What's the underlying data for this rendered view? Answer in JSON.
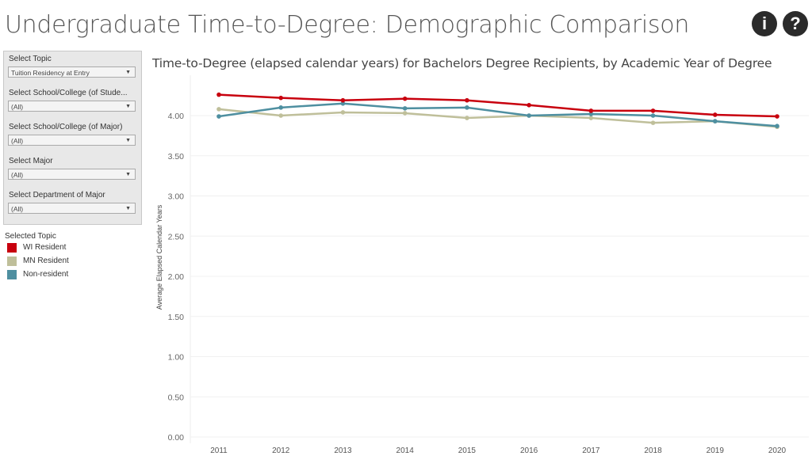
{
  "header": {
    "title": "Undergraduate Time-to-Degree: Demographic Comparison",
    "info_icon": "info-icon",
    "help_icon": "help-icon"
  },
  "filters": [
    {
      "label": "Select Topic",
      "value": "Tuition Residency at Entry"
    },
    {
      "label": "Select School/College (of Stude...",
      "value": "(All)"
    },
    {
      "label": "Select School/College (of Major)",
      "value": "(All)"
    },
    {
      "label": "Select Major",
      "value": "(All)"
    },
    {
      "label": "Select Department of Major",
      "value": "(All)"
    }
  ],
  "legend": {
    "title": "Selected Topic",
    "items": [
      {
        "label": "WI Resident",
        "color": "#c8000e"
      },
      {
        "label": "MN Resident",
        "color": "#bfbf9a"
      },
      {
        "label": "Non-resident",
        "color": "#4e8fa0"
      }
    ]
  },
  "chart_data": {
    "type": "line",
    "title": "Time-to-Degree (elapsed calendar years) for Bachelors Degree Recipients, by Academic Year of Degree",
    "xlabel": "",
    "ylabel": "Average Elapsed Calendar Years",
    "x": [
      "2011",
      "2012",
      "2013",
      "2014",
      "2015",
      "2016",
      "2017",
      "2018",
      "2019",
      "2020"
    ],
    "ylim": [
      0,
      4.3
    ],
    "yticks": [
      "0.00",
      "0.50",
      "1.00",
      "1.50",
      "2.00",
      "2.50",
      "3.00",
      "3.50",
      "4.00"
    ],
    "series": [
      {
        "name": "WI Resident",
        "color": "#c8000e",
        "values": [
          4.26,
          4.22,
          4.19,
          4.21,
          4.19,
          4.13,
          4.06,
          4.06,
          4.01,
          3.99
        ]
      },
      {
        "name": "MN Resident",
        "color": "#bfbf9a",
        "values": [
          4.08,
          4.0,
          4.04,
          4.03,
          3.97,
          4.0,
          3.97,
          3.91,
          3.93,
          3.86
        ]
      },
      {
        "name": "Non-resident",
        "color": "#4e8fa0",
        "values": [
          3.99,
          4.1,
          4.15,
          4.09,
          4.1,
          4.0,
          4.02,
          4.0,
          3.93,
          3.87
        ]
      }
    ]
  }
}
